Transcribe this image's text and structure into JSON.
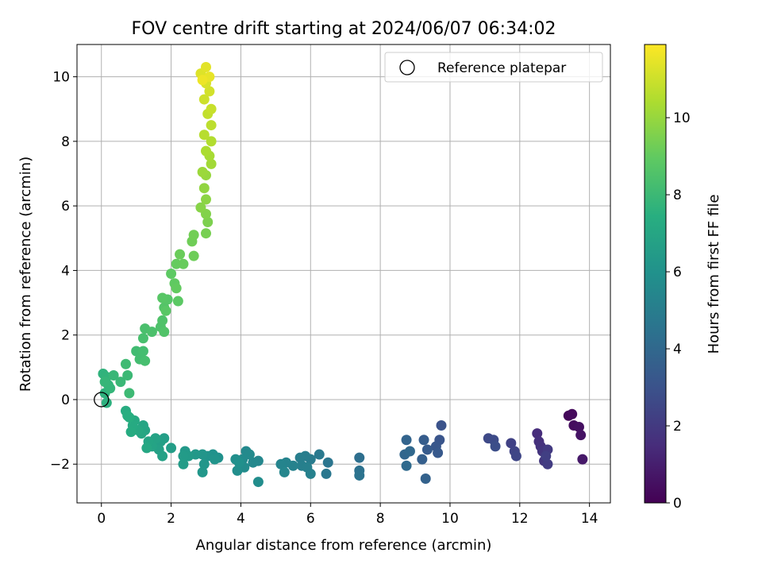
{
  "chart_data": {
    "type": "scatter",
    "title": "FOV centre drift starting at 2024/06/07 06:34:02",
    "xlabel": "Angular distance from reference (arcmin)",
    "ylabel": "Rotation from reference (arcmin)",
    "xlim": [
      -0.7,
      14.6
    ],
    "ylim": [
      -3.2,
      11.0
    ],
    "xticks": [
      0,
      2,
      4,
      6,
      8,
      10,
      12,
      14
    ],
    "yticks": [
      -2,
      0,
      2,
      4,
      6,
      8,
      10
    ],
    "grid": true,
    "legend": {
      "placement": "top-right",
      "entries": [
        "Reference platepar"
      ]
    },
    "reference_point": {
      "x": 0,
      "y": 0
    },
    "colorbar": {
      "label": "Hours from first FF file",
      "colormap": "viridis",
      "range": [
        0,
        11.9
      ],
      "ticks": [
        0,
        2,
        4,
        6,
        8,
        10
      ]
    },
    "points": [
      {
        "x": 13.4,
        "y": -0.5,
        "h": 0.2
      },
      {
        "x": 13.5,
        "y": -0.45,
        "h": 0.3
      },
      {
        "x": 13.55,
        "y": -0.8,
        "h": 0.4
      },
      {
        "x": 13.7,
        "y": -0.85,
        "h": 0.5
      },
      {
        "x": 13.75,
        "y": -1.1,
        "h": 0.6
      },
      {
        "x": 13.8,
        "y": -1.85,
        "h": 0.8
      },
      {
        "x": 12.5,
        "y": -1.05,
        "h": 1.5
      },
      {
        "x": 12.55,
        "y": -1.3,
        "h": 1.6
      },
      {
        "x": 12.6,
        "y": -1.45,
        "h": 1.7
      },
      {
        "x": 12.65,
        "y": -1.6,
        "h": 1.8
      },
      {
        "x": 12.7,
        "y": -1.9,
        "h": 1.9
      },
      {
        "x": 12.8,
        "y": -1.55,
        "h": 2.0
      },
      {
        "x": 12.8,
        "y": -2.0,
        "h": 2.1
      },
      {
        "x": 12.75,
        "y": -1.75,
        "h": 2.2
      },
      {
        "x": 11.75,
        "y": -1.35,
        "h": 2.3
      },
      {
        "x": 11.85,
        "y": -1.6,
        "h": 2.4
      },
      {
        "x": 11.9,
        "y": -1.75,
        "h": 2.5
      },
      {
        "x": 11.1,
        "y": -1.2,
        "h": 2.6
      },
      {
        "x": 11.25,
        "y": -1.25,
        "h": 2.7
      },
      {
        "x": 11.3,
        "y": -1.45,
        "h": 2.8
      },
      {
        "x": 9.75,
        "y": -0.8,
        "h": 3.0
      },
      {
        "x": 9.7,
        "y": -1.25,
        "h": 3.1
      },
      {
        "x": 9.6,
        "y": -1.45,
        "h": 3.2
      },
      {
        "x": 9.65,
        "y": -1.65,
        "h": 3.3
      },
      {
        "x": 9.35,
        "y": -1.55,
        "h": 3.4
      },
      {
        "x": 9.25,
        "y": -1.25,
        "h": 3.5
      },
      {
        "x": 9.2,
        "y": -1.85,
        "h": 3.6
      },
      {
        "x": 9.3,
        "y": -2.45,
        "h": 3.7
      },
      {
        "x": 8.75,
        "y": -1.25,
        "h": 3.8
      },
      {
        "x": 8.7,
        "y": -1.7,
        "h": 3.9
      },
      {
        "x": 8.85,
        "y": -1.6,
        "h": 4.0
      },
      {
        "x": 8.75,
        "y": -2.05,
        "h": 4.1
      },
      {
        "x": 7.4,
        "y": -1.8,
        "h": 4.3
      },
      {
        "x": 7.4,
        "y": -2.2,
        "h": 4.4
      },
      {
        "x": 7.4,
        "y": -2.35,
        "h": 4.5
      },
      {
        "x": 6.5,
        "y": -1.95,
        "h": 4.6
      },
      {
        "x": 6.45,
        "y": -2.3,
        "h": 4.7
      },
      {
        "x": 6.25,
        "y": -1.7,
        "h": 4.8
      },
      {
        "x": 6.0,
        "y": -1.85,
        "h": 4.9
      },
      {
        "x": 5.85,
        "y": -1.75,
        "h": 5.0
      },
      {
        "x": 5.7,
        "y": -1.8,
        "h": 5.05
      },
      {
        "x": 5.75,
        "y": -2.05,
        "h": 5.1
      },
      {
        "x": 5.9,
        "y": -2.1,
        "h": 5.15
      },
      {
        "x": 6.0,
        "y": -2.3,
        "h": 5.2
      },
      {
        "x": 5.5,
        "y": -2.05,
        "h": 5.25
      },
      {
        "x": 5.3,
        "y": -1.95,
        "h": 5.3
      },
      {
        "x": 5.15,
        "y": -2.0,
        "h": 5.35
      },
      {
        "x": 5.25,
        "y": -2.25,
        "h": 5.4
      },
      {
        "x": 4.5,
        "y": -1.9,
        "h": 5.45
      },
      {
        "x": 4.35,
        "y": -1.95,
        "h": 5.5
      },
      {
        "x": 4.15,
        "y": -1.6,
        "h": 5.55
      },
      {
        "x": 4.25,
        "y": -1.7,
        "h": 5.6
      },
      {
        "x": 4.05,
        "y": -1.85,
        "h": 5.65
      },
      {
        "x": 4.1,
        "y": -2.1,
        "h": 5.7
      },
      {
        "x": 4.5,
        "y": -2.55,
        "h": 5.75
      },
      {
        "x": 3.9,
        "y": -2.2,
        "h": 5.8
      },
      {
        "x": 3.85,
        "y": -1.85,
        "h": 5.85
      },
      {
        "x": 3.95,
        "y": -1.95,
        "h": 5.9
      },
      {
        "x": 3.35,
        "y": -1.8,
        "h": 5.95
      },
      {
        "x": 3.2,
        "y": -1.7,
        "h": 6.0
      },
      {
        "x": 3.05,
        "y": -1.75,
        "h": 6.05
      },
      {
        "x": 3.25,
        "y": -1.85,
        "h": 6.1
      },
      {
        "x": 2.9,
        "y": -1.7,
        "h": 6.15
      },
      {
        "x": 2.95,
        "y": -2.0,
        "h": 6.2
      },
      {
        "x": 2.9,
        "y": -2.25,
        "h": 6.25
      },
      {
        "x": 2.7,
        "y": -1.7,
        "h": 6.3
      },
      {
        "x": 2.4,
        "y": -1.6,
        "h": 6.35
      },
      {
        "x": 2.5,
        "y": -1.75,
        "h": 6.4
      },
      {
        "x": 2.35,
        "y": -1.75,
        "h": 6.45
      },
      {
        "x": 2.35,
        "y": -2.0,
        "h": 6.5
      },
      {
        "x": 2.0,
        "y": -1.5,
        "h": 6.55
      },
      {
        "x": 1.8,
        "y": -1.2,
        "h": 6.6
      },
      {
        "x": 1.7,
        "y": -1.3,
        "h": 6.65
      },
      {
        "x": 1.65,
        "y": -1.55,
        "h": 6.7
      },
      {
        "x": 1.75,
        "y": -1.75,
        "h": 6.75
      },
      {
        "x": 1.55,
        "y": -1.2,
        "h": 6.8
      },
      {
        "x": 1.45,
        "y": -1.45,
        "h": 6.85
      },
      {
        "x": 1.35,
        "y": -1.3,
        "h": 6.9
      },
      {
        "x": 1.25,
        "y": -0.95,
        "h": 6.95
      },
      {
        "x": 1.2,
        "y": -0.8,
        "h": 7.0
      },
      {
        "x": 1.15,
        "y": -1.05,
        "h": 7.05
      },
      {
        "x": 1.3,
        "y": -1.5,
        "h": 7.1
      },
      {
        "x": 1.05,
        "y": -0.95,
        "h": 7.15
      },
      {
        "x": 0.95,
        "y": -0.65,
        "h": 7.2
      },
      {
        "x": 0.9,
        "y": -0.8,
        "h": 7.25
      },
      {
        "x": 0.85,
        "y": -1.0,
        "h": 7.3
      },
      {
        "x": 0.7,
        "y": -0.35,
        "h": 7.35
      },
      {
        "x": 0.8,
        "y": -0.55,
        "h": 7.4
      },
      {
        "x": 0.75,
        "y": -0.5,
        "h": 7.45
      },
      {
        "x": 0.15,
        "y": -0.1,
        "h": 7.55
      },
      {
        "x": 0.1,
        "y": 0.2,
        "h": 7.6
      },
      {
        "x": 0.05,
        "y": 0.8,
        "h": 7.65
      },
      {
        "x": 0.15,
        "y": 0.7,
        "h": 7.7
      },
      {
        "x": 0.2,
        "y": 0.45,
        "h": 7.75
      },
      {
        "x": 0.25,
        "y": 0.35,
        "h": 7.8
      },
      {
        "x": 0.1,
        "y": 0.55,
        "h": 7.85
      },
      {
        "x": 0.35,
        "y": 0.75,
        "h": 7.9
      },
      {
        "x": 0.55,
        "y": 0.55,
        "h": 7.95
      },
      {
        "x": 0.75,
        "y": 0.75,
        "h": 8.0
      },
      {
        "x": 0.8,
        "y": 0.2,
        "h": 8.05
      },
      {
        "x": 0.7,
        "y": 1.1,
        "h": 8.1
      },
      {
        "x": 1.0,
        "y": 1.5,
        "h": 8.15
      },
      {
        "x": 1.1,
        "y": 1.25,
        "h": 8.2
      },
      {
        "x": 1.2,
        "y": 1.5,
        "h": 8.25
      },
      {
        "x": 1.25,
        "y": 1.2,
        "h": 8.3
      },
      {
        "x": 1.2,
        "y": 1.9,
        "h": 8.35
      },
      {
        "x": 1.25,
        "y": 2.2,
        "h": 8.4
      },
      {
        "x": 1.45,
        "y": 2.1,
        "h": 8.45
      },
      {
        "x": 1.7,
        "y": 2.25,
        "h": 8.5
      },
      {
        "x": 1.75,
        "y": 2.45,
        "h": 8.55
      },
      {
        "x": 1.8,
        "y": 2.1,
        "h": 8.6
      },
      {
        "x": 1.8,
        "y": 2.85,
        "h": 8.65
      },
      {
        "x": 1.9,
        "y": 3.1,
        "h": 8.7
      },
      {
        "x": 1.75,
        "y": 3.15,
        "h": 8.75
      },
      {
        "x": 1.85,
        "y": 2.75,
        "h": 8.8
      },
      {
        "x": 2.2,
        "y": 3.05,
        "h": 8.85
      },
      {
        "x": 2.0,
        "y": 3.9,
        "h": 8.9
      },
      {
        "x": 2.1,
        "y": 3.6,
        "h": 8.95
      },
      {
        "x": 2.15,
        "y": 3.45,
        "h": 9.0
      },
      {
        "x": 2.15,
        "y": 4.2,
        "h": 9.05
      },
      {
        "x": 2.35,
        "y": 4.2,
        "h": 9.1
      },
      {
        "x": 2.25,
        "y": 4.5,
        "h": 9.15
      },
      {
        "x": 2.65,
        "y": 4.45,
        "h": 9.2
      },
      {
        "x": 2.6,
        "y": 4.9,
        "h": 9.25
      },
      {
        "x": 2.65,
        "y": 5.1,
        "h": 9.3
      },
      {
        "x": 3.0,
        "y": 5.15,
        "h": 9.4
      },
      {
        "x": 3.05,
        "y": 5.5,
        "h": 9.5
      },
      {
        "x": 3.0,
        "y": 5.75,
        "h": 9.6
      },
      {
        "x": 2.85,
        "y": 5.95,
        "h": 9.7
      },
      {
        "x": 3.0,
        "y": 6.2,
        "h": 9.8
      },
      {
        "x": 2.95,
        "y": 6.55,
        "h": 9.9
      },
      {
        "x": 3.0,
        "y": 6.95,
        "h": 10.0
      },
      {
        "x": 2.9,
        "y": 7.05,
        "h": 10.1
      },
      {
        "x": 3.15,
        "y": 7.3,
        "h": 10.2
      },
      {
        "x": 3.1,
        "y": 7.55,
        "h": 10.3
      },
      {
        "x": 3.0,
        "y": 7.7,
        "h": 10.4
      },
      {
        "x": 3.15,
        "y": 8.0,
        "h": 10.5
      },
      {
        "x": 2.95,
        "y": 8.2,
        "h": 10.6
      },
      {
        "x": 3.15,
        "y": 8.5,
        "h": 10.7
      },
      {
        "x": 3.05,
        "y": 8.85,
        "h": 10.8
      },
      {
        "x": 3.15,
        "y": 9.0,
        "h": 10.9
      },
      {
        "x": 2.95,
        "y": 9.3,
        "h": 11.0
      },
      {
        "x": 3.1,
        "y": 9.55,
        "h": 11.1
      },
      {
        "x": 3.0,
        "y": 9.8,
        "h": 11.2
      },
      {
        "x": 2.85,
        "y": 10.1,
        "h": 11.3
      },
      {
        "x": 3.0,
        "y": 10.3,
        "h": 11.4
      },
      {
        "x": 3.1,
        "y": 10.0,
        "h": 11.5
      },
      {
        "x": 2.9,
        "y": 9.9,
        "h": 11.6
      }
    ]
  }
}
